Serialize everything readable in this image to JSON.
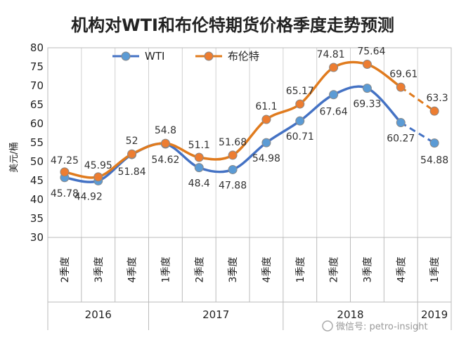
{
  "chart_data": {
    "type": "line",
    "title": "机构对WTI和布伦特期货价格季度走势预测",
    "ylabel": "美元/桶",
    "ylim": [
      30,
      80
    ],
    "yticks": [
      30,
      35,
      40,
      45,
      50,
      55,
      60,
      65,
      70,
      75,
      80
    ],
    "grid": "vertical",
    "legend": "top-left",
    "categories": [
      "2季度",
      "3季度",
      "4季度",
      "1季度",
      "2季度",
      "3季度",
      "4季度",
      "1季度",
      "2季度",
      "3季度",
      "4季度",
      "1季度"
    ],
    "year_groups": [
      {
        "label": "2016",
        "count": 3
      },
      {
        "label": "2017",
        "count": 4
      },
      {
        "label": "2018",
        "count": 4
      },
      {
        "label": "2019",
        "count": 1
      }
    ],
    "series": [
      {
        "name": "WTI",
        "color": "#4472C4",
        "marker_color": "#5B9BD5",
        "values": [
          45.78,
          44.92,
          51.84,
          54.62,
          48.4,
          47.88,
          54.98,
          60.71,
          67.64,
          69.33,
          60.27,
          54.88
        ],
        "dashed_from_index": 10
      },
      {
        "name": "布伦特",
        "color": "#E07B1E",
        "marker_color": "#ED7D31",
        "values": [
          47.25,
          45.95,
          52,
          54.8,
          51.1,
          51.68,
          61.1,
          65.17,
          74.81,
          75.64,
          69.61,
          63.3
        ],
        "dashed_from_index": 10
      }
    ]
  },
  "watermark": "微信号: petro-insight"
}
